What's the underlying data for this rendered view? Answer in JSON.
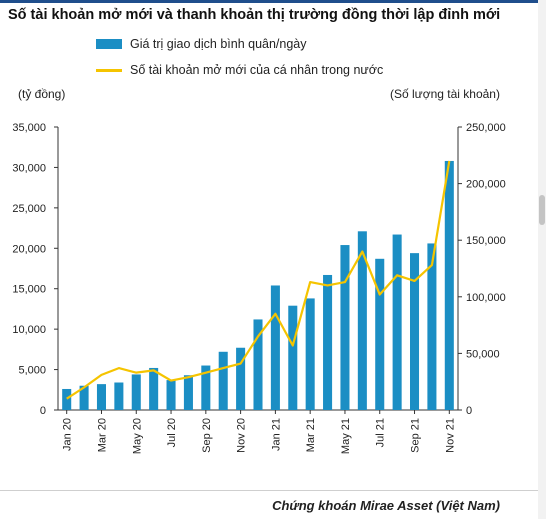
{
  "title": "Số tài khoản mở mới và thanh khoản thị trường đồng thời lập đỉnh mới",
  "source": "Chứng khoán Mirae Asset (Việt Nam)",
  "colors": {
    "bar": "#1b8ec4",
    "line": "#f5c400",
    "title_rule": "#1f4e8c"
  },
  "chart_data": {
    "type": "bar",
    "categories": [
      "Jan 20",
      "Feb 20",
      "Mar 20",
      "Apr 20",
      "May 20",
      "Jun 20",
      "Jul 20",
      "Aug 20",
      "Sep 20",
      "Oct 20",
      "Nov 20",
      "Dec 20",
      "Jan 21",
      "Feb 21",
      "Mar 21",
      "Apr 21",
      "May 21",
      "Jun 21",
      "Jul 21",
      "Aug 21",
      "Sep 21",
      "Oct 21",
      "Nov 21"
    ],
    "xtick_labels": [
      "Jan 20",
      "Mar 20",
      "May 20",
      "Jul 20",
      "Sep 20",
      "Nov 20",
      "Jan 21",
      "Mar 21",
      "May 21",
      "Jul 21",
      "Sep 21",
      "Nov 21"
    ],
    "series": [
      {
        "name": "Giá trị giao dịch bình quân/ngày",
        "type": "bar",
        "axis": "left",
        "values": [
          2600,
          3000,
          3200,
          3400,
          4400,
          5200,
          3700,
          4300,
          5500,
          7200,
          7700,
          11200,
          15400,
          12900,
          13800,
          16700,
          20400,
          22100,
          18700,
          21700,
          19400,
          20600,
          30800
        ]
      },
      {
        "name": "Số tài khoản mở mới của cá nhân trong nước",
        "type": "line",
        "axis": "right",
        "values": [
          10000,
          20000,
          31000,
          37000,
          33000,
          35000,
          26000,
          29000,
          33000,
          37000,
          41000,
          65000,
          85000,
          57000,
          113000,
          110000,
          113000,
          140000,
          102000,
          119000,
          114000,
          128000,
          220000
        ]
      }
    ],
    "y_left": {
      "label": "(tỷ đồng)",
      "min": 0,
      "max": 35000,
      "ticks": [
        "35,000",
        "30,000",
        "25,000",
        "20,000",
        "15,000",
        "10,000",
        "5,000",
        "0"
      ]
    },
    "y_right": {
      "label": "(Số lượng tài khoản)",
      "min": 0,
      "max": 250000,
      "ticks": [
        "250,000",
        "200,000",
        "150,000",
        "100,000",
        "50,000",
        "0"
      ]
    },
    "legend": "top-left",
    "grid": false
  }
}
